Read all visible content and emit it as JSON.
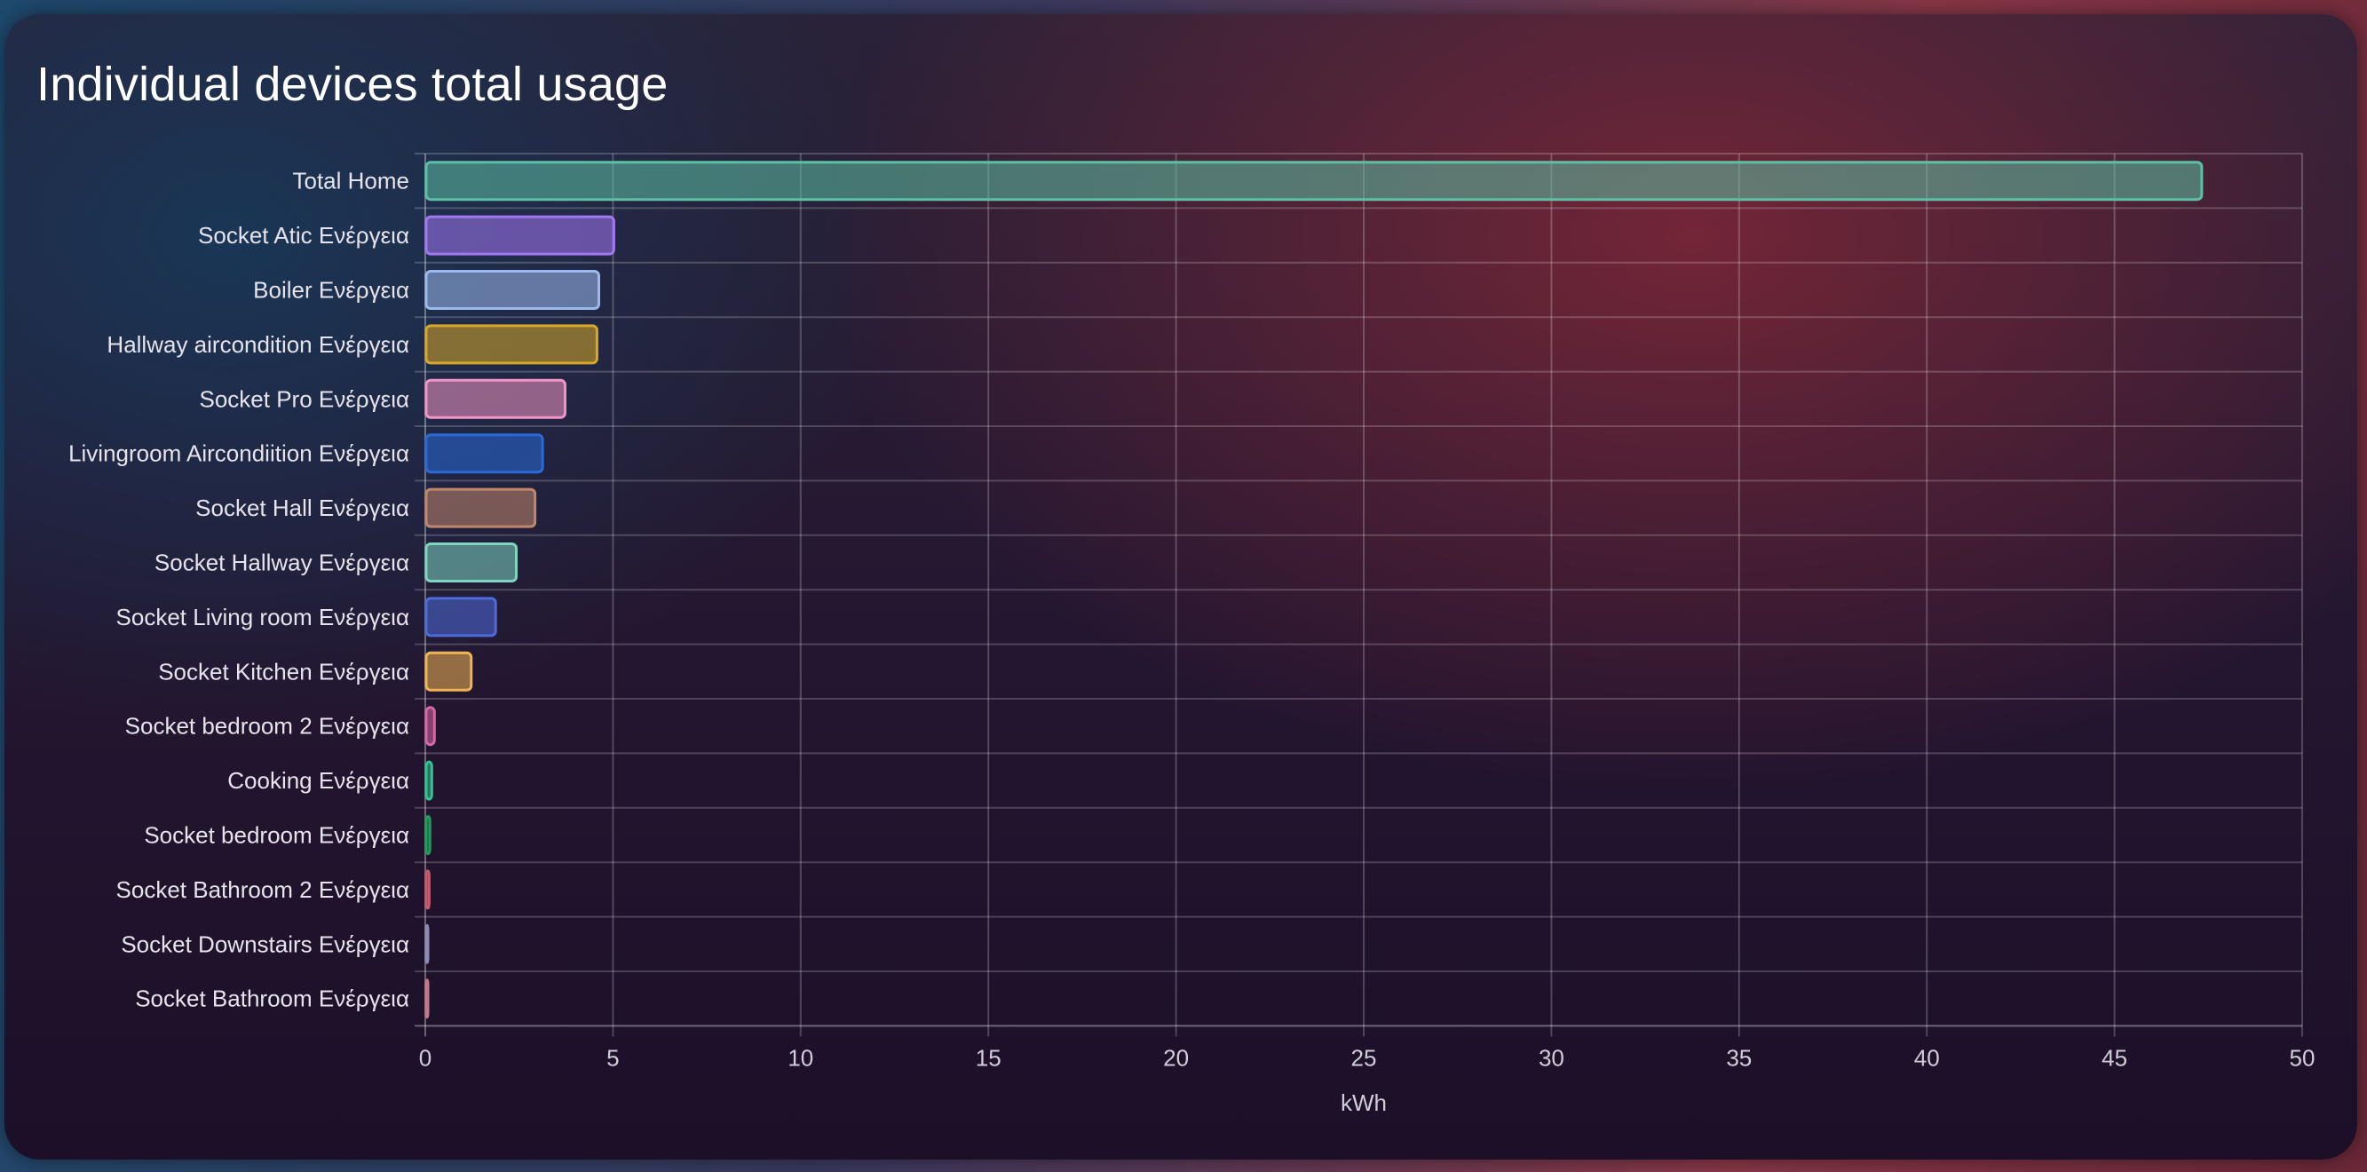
{
  "card": {
    "title": "Individual devices total usage"
  },
  "chart_data": {
    "type": "bar",
    "orientation": "horizontal",
    "title": "Individual devices total usage",
    "xlabel": "kWh",
    "ylabel": "",
    "xlim": [
      0,
      50
    ],
    "x_ticks": [
      0,
      5,
      10,
      15,
      20,
      25,
      30,
      35,
      40,
      45,
      50
    ],
    "grid": true,
    "legend": "none",
    "categories": [
      "Total Home",
      "Socket Atic Ενέργεια",
      "Boiler Ενέργεια",
      "Hallway aircondition Ενέργεια",
      "Socket Pro Ενέργεια",
      "Livingroom Aircondiition Ενέργεια",
      "Socket Hall Ενέργεια",
      "Socket Hallway Ενέργεια",
      "Socket Living room Ενέργεια",
      "Socket Kitchen  Ενέργεια",
      "Socket bedroom 2 Ενέργεια",
      "Cooking Ενέργεια",
      "Socket bedroom Ενέργεια",
      "Socket Bathroom 2 Ενέργεια",
      "Socket Downstairs Ενέργεια",
      "Socket Bathroom Ενέργεια"
    ],
    "values": [
      47.3,
      5.0,
      4.6,
      4.55,
      3.7,
      3.1,
      2.9,
      2.4,
      1.85,
      1.2,
      0.22,
      0.15,
      0.1,
      0.08,
      0.04,
      0.03
    ],
    "colors": [
      "#5cc0a4",
      "#a277f2",
      "#9ab9ee",
      "#d8a726",
      "#f294c5",
      "#2a6ad8",
      "#c2876b",
      "#7ed6c2",
      "#4e6bdb",
      "#f0b553",
      "#d766a8",
      "#2ec58e",
      "#1e9e58",
      "#c65a6e",
      "#8b8bb5",
      "#c27a8a"
    ]
  }
}
